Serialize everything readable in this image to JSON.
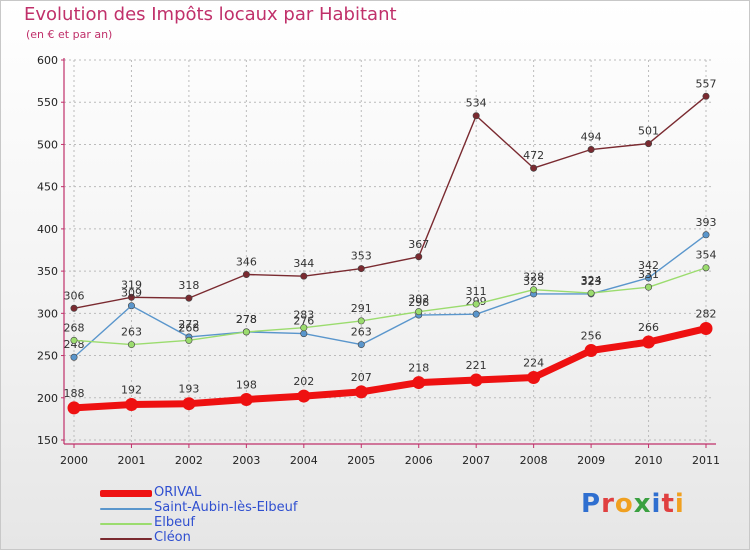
{
  "header": {
    "title": "Evolution des Impôts locaux par Habitant",
    "subtitle": "(en € et par an)"
  },
  "colors": {
    "accent": "#c0306a",
    "axis": "#c0306a",
    "grid": "#bbbbbb",
    "tick_text": "#222222",
    "data_label": "#333333",
    "legend_text": "#2f4fd0"
  },
  "logo": {
    "text": "Proxiti",
    "letters": [
      {
        "ch": "P",
        "color": "#2f6fd0"
      },
      {
        "ch": "r",
        "color": "#e04040"
      },
      {
        "ch": "o",
        "color": "#f0a020"
      },
      {
        "ch": "x",
        "color": "#3aa040"
      },
      {
        "ch": "i",
        "color": "#2f6fd0"
      },
      {
        "ch": "t",
        "color": "#e04040"
      },
      {
        "ch": "i",
        "color": "#f0a020"
      }
    ]
  },
  "chart_data": {
    "type": "line",
    "title": "Evolution des Impôts locaux par Habitant",
    "subtitle": "(en € et par an)",
    "xlabel": "",
    "ylabel": "",
    "ylim": [
      150,
      600
    ],
    "yticks": [
      150,
      200,
      250,
      300,
      350,
      400,
      450,
      500,
      550,
      600
    ],
    "grid": true,
    "legend_position": "bottom-left",
    "categories": [
      "2000",
      "2001",
      "2002",
      "2003",
      "2004",
      "2005",
      "2006",
      "2007",
      "2008",
      "2009",
      "2010",
      "2011"
    ],
    "series": [
      {
        "name": "Cléon",
        "color": "#7a2a30",
        "values": [
          306,
          319,
          318,
          346,
          344,
          353,
          367,
          534,
          472,
          494,
          501,
          557
        ],
        "labels": [
          "306",
          "319",
          "318",
          "346",
          "344",
          "353",
          "367",
          "534",
          "472",
          "494",
          "501",
          "557"
        ]
      },
      {
        "name": "Saint-Aubin-lès-Elbeuf",
        "color": "#5a96cc",
        "values": [
          248,
          309,
          272,
          278,
          276,
          263,
          298,
          299,
          323,
          323,
          342,
          393
        ],
        "labels": [
          "248",
          "309",
          "272",
          "278",
          "276",
          "263",
          "298",
          "299",
          "323",
          "323",
          "342",
          "393"
        ]
      },
      {
        "name": "Elbeuf",
        "color": "#9bdc6e",
        "values": [
          268,
          263,
          268,
          278,
          283,
          291,
          302,
          311,
          328,
          324,
          331,
          354
        ],
        "labels": [
          "268",
          "263",
          "268",
          "278",
          "283",
          "291",
          "302",
          "311",
          "328",
          "324",
          "331",
          "354"
        ]
      },
      {
        "name": "ORIVAL",
        "color": "#ee1111",
        "values": [
          188,
          192,
          193,
          198,
          202,
          207,
          218,
          221,
          224,
          256,
          266,
          282
        ],
        "labels": [
          "188",
          "192",
          "193",
          "198",
          "202",
          "207",
          "218",
          "221",
          "224",
          "256",
          "266",
          "282"
        ]
      }
    ],
    "legend": [
      {
        "name": "ORIVAL",
        "color": "#ee1111"
      },
      {
        "name": "Saint-Aubin-lès-Elbeuf",
        "color": "#5a96cc"
      },
      {
        "name": "Elbeuf",
        "color": "#9bdc6e"
      },
      {
        "name": "Cléon",
        "color": "#7a2a30"
      }
    ]
  }
}
